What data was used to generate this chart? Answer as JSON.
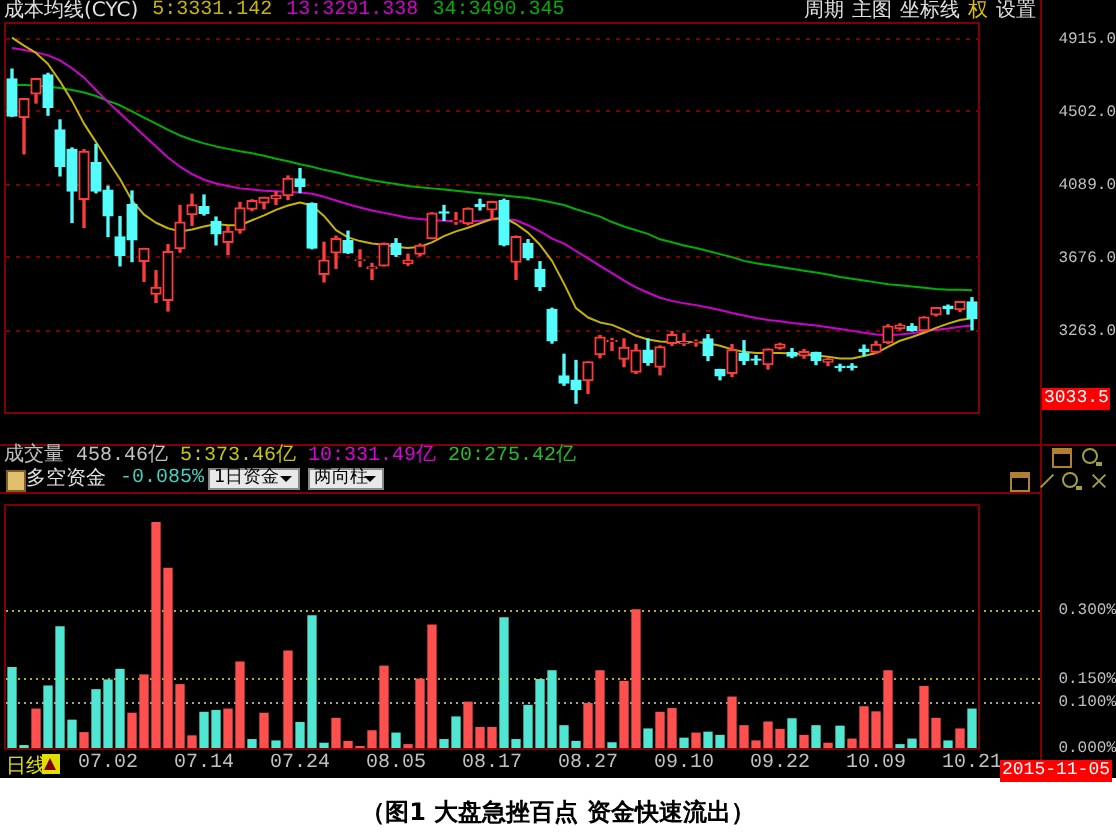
{
  "chart_data": [
    {
      "type": "candlestick",
      "title": "成本均线(CYC)",
      "categories": [
        null,
        null,
        null,
        null,
        null,
        null,
        null,
        null,
        "07.02",
        null,
        null,
        null,
        null,
        null,
        null,
        null,
        "07.14",
        null,
        null,
        null,
        null,
        null,
        null,
        null,
        "07.24",
        null,
        null,
        null,
        null,
        null,
        null,
        null,
        "08.05",
        null,
        null,
        null,
        null,
        null,
        null,
        null,
        "08.17",
        null,
        null,
        null,
        null,
        null,
        null,
        null,
        "08.27",
        null,
        null,
        null,
        null,
        null,
        null,
        null,
        "09.10",
        null,
        null,
        null,
        null,
        null,
        null,
        null,
        "09.22",
        null,
        null,
        null,
        null,
        null,
        null,
        null,
        "10.09",
        null,
        null,
        null,
        null,
        null,
        null,
        null,
        "10.21"
      ],
      "ohlc": [
        [
          4689,
          4744,
          4476,
          4478
        ],
        [
          4471,
          4577,
          4264,
          4576
        ],
        [
          4604,
          4691,
          4552,
          4690
        ],
        [
          4711,
          4720,
          4483,
          4527
        ],
        [
          4399,
          4456,
          4139,
          4192
        ],
        [
          4289,
          4297,
          3875,
          4053
        ],
        [
          4006,
          4287,
          3847,
          4277
        ],
        [
          4214,
          4317,
          4043,
          4053
        ],
        [
          4058,
          4080,
          3795,
          3912
        ],
        [
          3793,
          3908,
          3629,
          3687
        ],
        [
          3975,
          4053,
          3653,
          3776
        ],
        [
          3654,
          3727,
          3541,
          3727
        ],
        [
          3468,
          3601,
          3421,
          3507
        ],
        [
          3433,
          3749,
          3373,
          3709
        ],
        [
          3727,
          3971,
          3707,
          3877
        ],
        [
          3919,
          4034,
          3859,
          3974
        ],
        [
          3964,
          4030,
          3917,
          3926
        ],
        [
          3880,
          3905,
          3748,
          3810
        ],
        [
          3762,
          3851,
          3692,
          3824
        ],
        [
          3831,
          3988,
          3815,
          3957
        ],
        [
          3950,
          4003,
          3942,
          3999
        ],
        [
          3986,
          4017,
          3953,
          4017
        ],
        [
          4010,
          4048,
          3977,
          4026
        ],
        [
          4027,
          4138,
          4006,
          4124
        ],
        [
          4121,
          4180,
          4044,
          4079
        ],
        [
          3981,
          3985,
          3726,
          3730
        ],
        [
          3580,
          3762,
          3538,
          3661
        ],
        [
          3702,
          3797,
          3615,
          3783
        ],
        [
          3772,
          3825,
          3700,
          3702
        ],
        [
          3658,
          3719,
          3626,
          3663
        ],
        [
          3614,
          3642,
          3552,
          3622
        ],
        [
          3629,
          3757,
          3629,
          3755
        ],
        [
          3755,
          3782,
          3683,
          3694
        ],
        [
          3641,
          3695,
          3632,
          3661
        ],
        [
          3695,
          3752,
          3685,
          3744
        ],
        [
          3783,
          3929,
          3783,
          3928
        ],
        [
          3935,
          3971,
          3887,
          3928
        ],
        [
          3880,
          3930,
          3865,
          3886
        ],
        [
          3869,
          3956,
          3862,
          3954
        ],
        [
          3976,
          4006,
          3946,
          3965
        ],
        [
          3946,
          3994,
          3893,
          3993
        ],
        [
          3999,
          4006,
          3743,
          3748
        ],
        [
          3650,
          3797,
          3552,
          3794
        ],
        [
          3755,
          3777,
          3663,
          3674
        ],
        [
          3608,
          3652,
          3490,
          3511
        ],
        [
          3382,
          3388,
          3191,
          3204
        ],
        [
          3005,
          3127,
          2952,
          2964
        ],
        [
          2980,
          3092,
          2850,
          2927
        ],
        [
          2978,
          3084,
          2906,
          3084
        ],
        [
          3125,
          3233,
          3108,
          3225
        ],
        [
          3200,
          3217,
          3150,
          3205
        ],
        [
          3100,
          3214,
          3057,
          3166
        ],
        [
          3027,
          3183,
          3019,
          3151
        ],
        [
          3151,
          3214,
          3066,
          3082
        ],
        [
          3054,
          3174,
          3011,
          3169
        ],
        [
          3190,
          3256,
          3178,
          3239
        ],
        [
          3190,
          3243,
          3178,
          3197
        ],
        [
          3196,
          3207,
          3174,
          3200
        ],
        [
          3214,
          3238,
          3092,
          3120
        ],
        [
          3041,
          3041,
          2983,
          3005
        ],
        [
          3019,
          3182,
          3002,
          3152
        ],
        [
          3134,
          3204,
          3070,
          3092
        ],
        [
          3100,
          3119,
          3070,
          3095
        ],
        [
          3069,
          3157,
          3044,
          3156
        ],
        [
          3162,
          3189,
          3157,
          3185
        ],
        [
          3137,
          3159,
          3109,
          3117
        ],
        [
          3118,
          3154,
          3106,
          3142
        ],
        [
          3138,
          3138,
          3069,
          3092
        ],
        [
          3083,
          3103,
          3063,
          3100
        ],
        [
          3059,
          3070,
          3033,
          3052
        ],
        [
          3060,
          3073,
          3039,
          3053
        ],
        [
          3156,
          3179,
          3120,
          3143
        ],
        [
          3139,
          3200,
          3132,
          3183
        ],
        [
          3193,
          3294,
          3188,
          3287
        ],
        [
          3275,
          3300,
          3266,
          3293
        ],
        [
          3285,
          3300,
          3259,
          3263
        ],
        [
          3262,
          3339,
          3257,
          3338
        ],
        [
          3351,
          3392,
          3345,
          3391
        ],
        [
          3400,
          3406,
          3356,
          3386
        ],
        [
          3381,
          3425,
          3370,
          3425
        ],
        [
          3424,
          3448,
          3266,
          3329
        ]
      ],
      "series": [
        {
          "name": "5:3331.142",
          "type": "line",
          "color": "#c8b400",
          "values": [
            4923,
            4877,
            4836,
            4773,
            4675,
            4564,
            4435,
            4330,
            4225,
            4121,
            3999,
            3919,
            3873,
            3842,
            3824,
            3835,
            3852,
            3866,
            3859,
            3859,
            3887,
            3915,
            3946,
            3971,
            3988,
            3971,
            3912,
            3831,
            3790,
            3769,
            3755,
            3748,
            3737,
            3730,
            3737,
            3762,
            3797,
            3824,
            3845,
            3870,
            3894,
            3901,
            3866,
            3817,
            3748,
            3657,
            3528,
            3389,
            3336,
            3308,
            3294,
            3266,
            3232,
            3211,
            3200,
            3197,
            3197,
            3197,
            3190,
            3176,
            3155,
            3141,
            3134,
            3134,
            3134,
            3131,
            3127,
            3120,
            3113,
            3103,
            3103,
            3117,
            3134,
            3169,
            3204,
            3225,
            3249,
            3277,
            3301,
            3322,
            3331
          ]
        },
        {
          "name": "13:3291.338",
          "type": "line",
          "color": "#d000d0",
          "values": [
            4864,
            4853,
            4839,
            4822,
            4794,
            4749,
            4696,
            4626,
            4557,
            4494,
            4431,
            4368,
            4306,
            4243,
            4191,
            4149,
            4117,
            4096,
            4082,
            4068,
            4061,
            4055,
            4051,
            4048,
            4044,
            4037,
            4020,
            3999,
            3978,
            3960,
            3943,
            3929,
            3915,
            3901,
            3894,
            3887,
            3884,
            3880,
            3880,
            3884,
            3891,
            3894,
            3887,
            3859,
            3824,
            3783,
            3755,
            3713,
            3671,
            3629,
            3587,
            3545,
            3507,
            3476,
            3448,
            3430,
            3416,
            3406,
            3392,
            3378,
            3361,
            3347,
            3333,
            3322,
            3315,
            3305,
            3298,
            3291,
            3280,
            3270,
            3260,
            3249,
            3239,
            3235,
            3239,
            3246,
            3256,
            3266,
            3273,
            3284,
            3291
          ]
        },
        {
          "name": "34:3490.345",
          "type": "line",
          "color": "#00b000",
          "values": [
            4654,
            4654,
            4651,
            4644,
            4637,
            4626,
            4612,
            4592,
            4564,
            4539,
            4504,
            4469,
            4435,
            4400,
            4368,
            4344,
            4323,
            4306,
            4292,
            4278,
            4267,
            4253,
            4236,
            4222,
            4205,
            4191,
            4173,
            4159,
            4142,
            4128,
            4114,
            4103,
            4093,
            4082,
            4075,
            4068,
            4061,
            4055,
            4048,
            4041,
            4034,
            4027,
            4020,
            4013,
            4002,
            3988,
            3974,
            3950,
            3929,
            3908,
            3877,
            3852,
            3831,
            3810,
            3779,
            3762,
            3744,
            3730,
            3713,
            3695,
            3678,
            3657,
            3643,
            3633,
            3622,
            3612,
            3601,
            3591,
            3580,
            3566,
            3556,
            3545,
            3535,
            3524,
            3518,
            3511,
            3504,
            3497,
            3493,
            3493,
            3490
          ]
        }
      ],
      "ylim": [
        2800,
        5000
      ],
      "yticks": [
        {
          "value": 3263,
          "label": "3263.0"
        },
        {
          "value": 3676,
          "label": "3676.0"
        },
        {
          "value": 4089,
          "label": "4089.0"
        },
        {
          "value": 4502,
          "label": "4502.0"
        },
        {
          "value": 4915,
          "label": "4915.0"
        }
      ],
      "grid": "y",
      "tick_labels": "y",
      "annotations": [
        "周期",
        "主图",
        "坐标线",
        "权",
        "设置",
        "3033.5"
      ]
    },
    {
      "type": "bar",
      "title": "多空资金",
      "subtitle": "-0.085%",
      "categories": [
        null,
        null,
        null,
        null,
        null,
        null,
        null,
        null,
        "07.02",
        null,
        null,
        null,
        null,
        null,
        null,
        null,
        "07.14",
        null,
        null,
        null,
        null,
        null,
        null,
        null,
        "07.24",
        null,
        null,
        null,
        null,
        null,
        null,
        null,
        "08.05",
        null,
        null,
        null,
        null,
        null,
        null,
        null,
        "08.17",
        null,
        null,
        null,
        null,
        null,
        null,
        null,
        "08.27",
        null,
        null,
        null,
        null,
        null,
        null,
        null,
        "09.10",
        null,
        null,
        null,
        null,
        null,
        null,
        null,
        "09.22",
        null,
        null,
        null,
        null,
        null,
        null,
        null,
        "10.09",
        null,
        null,
        null,
        null,
        null,
        null,
        null,
        "10.21"
      ],
      "values": [
        0.174,
        0.005,
        0.084,
        0.134,
        0.262,
        0.06,
        0.033,
        0.126,
        0.147,
        0.17,
        0.075,
        0.158,
        0.488,
        0.389,
        0.137,
        0.026,
        0.077,
        0.081,
        0.084,
        0.186,
        0.018,
        0.075,
        0.015,
        0.21,
        0.055,
        0.286,
        0.01,
        0.064,
        0.014,
        0.003,
        0.037,
        0.177,
        0.032,
        0.007,
        0.149,
        0.266,
        0.018,
        0.067,
        0.099,
        0.044,
        0.044,
        0.282,
        0.018,
        0.092,
        0.148,
        0.167,
        0.048,
        0.014,
        0.096,
        0.167,
        0.011,
        0.144,
        0.299,
        0.041,
        0.077,
        0.085,
        0.021,
        0.032,
        0.034,
        0.027,
        0.11,
        0.048,
        0.015,
        0.056,
        0.04,
        0.063,
        0.027,
        0.048,
        0.01,
        0.047,
        0.019,
        0.089,
        0.078,
        0.167,
        0.007,
        0.019,
        0.133,
        0.064,
        0.015,
        0.041,
        0.084
      ],
      "colors": [
        "#50e6d2",
        "#50e6d2",
        "#ff5050",
        "#50e6d2",
        "#50e6d2",
        "#50e6d2",
        "#ff5050",
        "#50e6d2",
        "#50e6d2",
        "#50e6d2",
        "#ff5050",
        "#ff5050",
        "#ff5050",
        "#ff5050",
        "#ff5050",
        "#ff5050",
        "#50e6d2",
        "#50e6d2",
        "#ff5050",
        "#ff5050",
        "#50e6d2",
        "#ff5050",
        "#50e6d2",
        "#ff5050",
        "#50e6d2",
        "#50e6d2",
        "#50e6d2",
        "#ff5050",
        "#ff5050",
        "#ff5050",
        "#ff5050",
        "#ff5050",
        "#50e6d2",
        "#ff5050",
        "#ff5050",
        "#ff5050",
        "#50e6d2",
        "#50e6d2",
        "#ff5050",
        "#ff5050",
        "#ff5050",
        "#50e6d2",
        "#50e6d2",
        "#50e6d2",
        "#50e6d2",
        "#50e6d2",
        "#50e6d2",
        "#50e6d2",
        "#ff5050",
        "#ff5050",
        "#50e6d2",
        "#ff5050",
        "#ff5050",
        "#50e6d2",
        "#ff5050",
        "#ff5050",
        "#50e6d2",
        "#ff5050",
        "#50e6d2",
        "#50e6d2",
        "#ff5050",
        "#ff5050",
        "#ff5050",
        "#ff5050",
        "#ff5050",
        "#50e6d2",
        "#ff5050",
        "#50e6d2",
        "#ff5050",
        "#50e6d2",
        "#ff5050",
        "#ff5050",
        "#ff5050",
        "#ff5050",
        "#50e6d2",
        "#50e6d2",
        "#ff5050",
        "#ff5050",
        "#50e6d2",
        "#ff5050",
        "#50e6d2"
      ],
      "ylim": [
        0,
        0.525
      ],
      "yticks": [
        {
          "value": 0,
          "label": "0.000%"
        },
        {
          "value": 0.1,
          "label": "0.100%"
        },
        {
          "value": 0.15,
          "label": "0.150%"
        },
        {
          "value": 0.3,
          "label": "0.300%"
        }
      ],
      "ref_lines": [
        {
          "axis": "y",
          "value": 0.3,
          "color": "#b4b400",
          "line_style": "dotted"
        },
        {
          "axis": "y",
          "value": 0.15,
          "color": "#b4b400",
          "line_style": "dotted"
        },
        {
          "axis": "y",
          "value": 0.1,
          "color": "#a0a0a0",
          "line_style": "dotted"
        }
      ],
      "annotations": [
        "成交量",
        "458.46亿",
        "5:373.46亿",
        "10:331.49亿",
        "20:275.42亿",
        "1日资金",
        "两向柱",
        "日线",
        "2015-11-05",
        "（图1 大盘急挫百点 资金快速流出）"
      ]
    }
  ]
}
